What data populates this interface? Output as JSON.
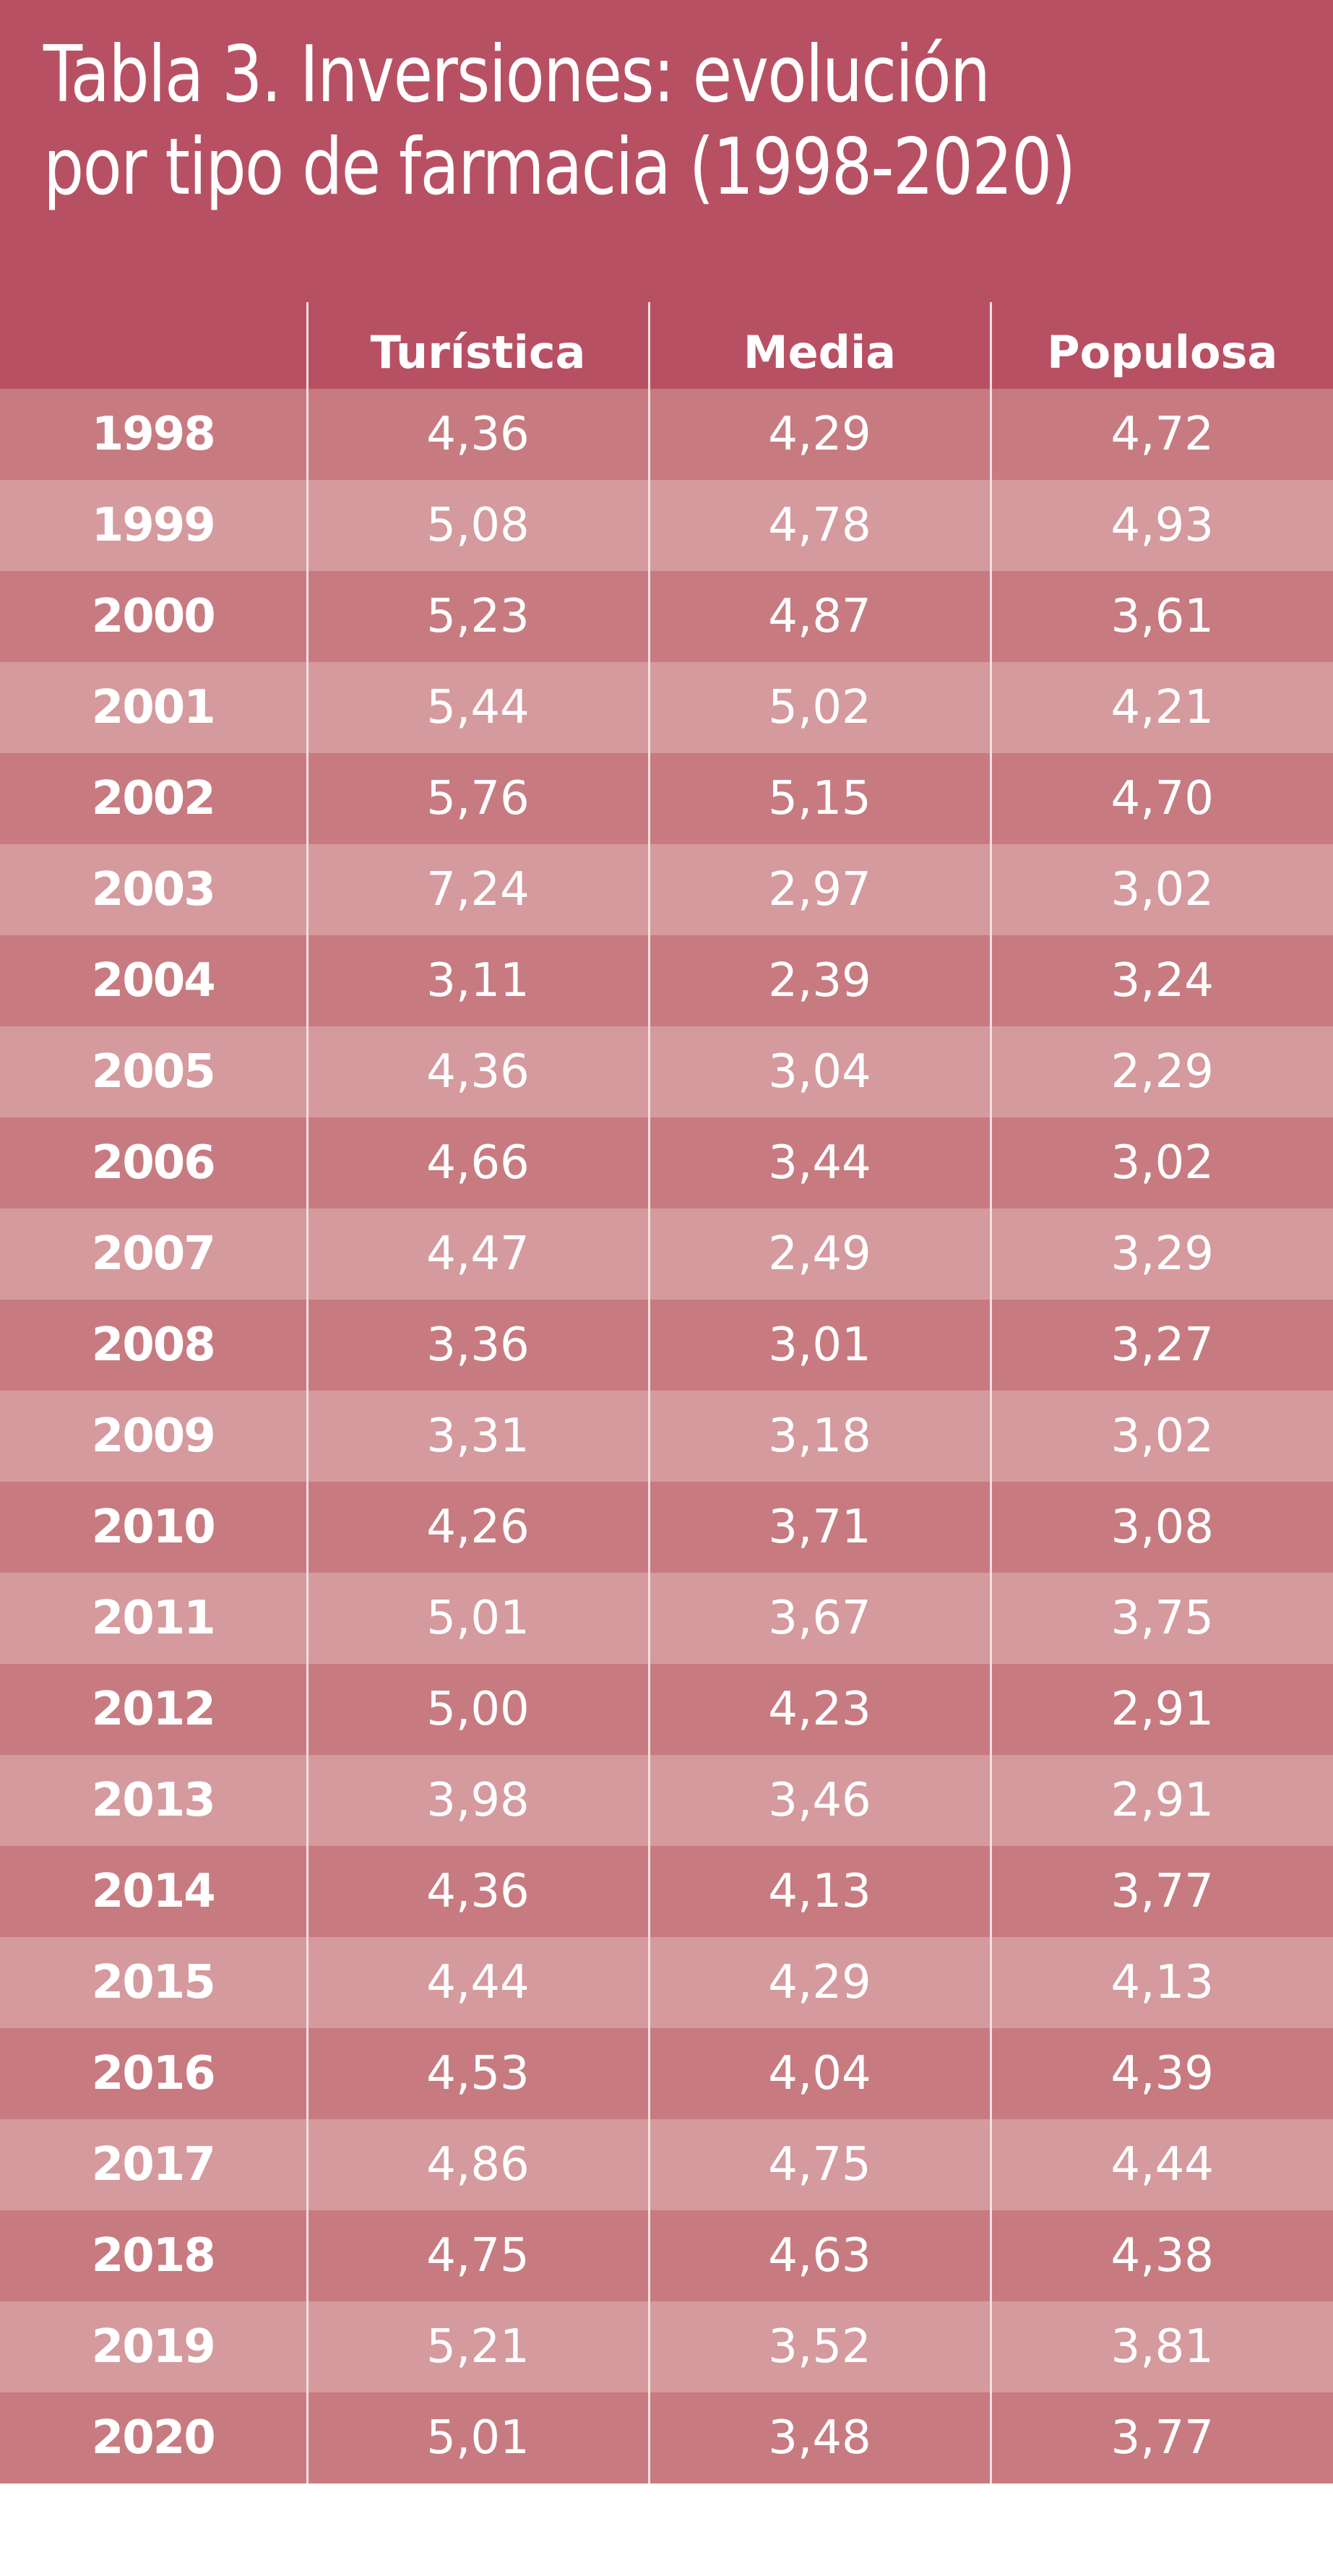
{
  "title": "Tabla 3. Inversiones: evolución por tipo de farmacia (1998-2020)",
  "table": {
    "headers": [
      "",
      "Turística",
      "Media",
      "Populosa"
    ],
    "rows": [
      [
        "1998",
        "4,36",
        "4,29",
        "4,72"
      ],
      [
        "1999",
        "5,08",
        "4,78",
        "4,93"
      ],
      [
        "2000",
        "5,23",
        "4,87",
        "3,61"
      ],
      [
        "2001",
        "5,44",
        "5,02",
        "4,21"
      ],
      [
        "2002",
        "5,76",
        "5,15",
        "4,70"
      ],
      [
        "2003",
        "7,24",
        "2,97",
        "3,02"
      ],
      [
        "2004",
        "3,11",
        "2,39",
        "3,24"
      ],
      [
        "2005",
        "4,36",
        "3,04",
        "2,29"
      ],
      [
        "2006",
        "4,66",
        "3,44",
        "3,02"
      ],
      [
        "2007",
        "4,47",
        "2,49",
        "3,29"
      ],
      [
        "2008",
        "3,36",
        "3,01",
        "3,27"
      ],
      [
        "2009",
        "3,31",
        "3,18",
        "3,02"
      ],
      [
        "2010",
        "4,26",
        "3,71",
        "3,08"
      ],
      [
        "2011",
        "5,01",
        "3,67",
        "3,75"
      ],
      [
        "2012",
        "5,00",
        "4,23",
        "2,91"
      ],
      [
        "2013",
        "3,98",
        "3,46",
        "2,91"
      ],
      [
        "2014",
        "4,36",
        "4,13",
        "3,77"
      ],
      [
        "2015",
        "4,44",
        "4,29",
        "4,13"
      ],
      [
        "2016",
        "4,53",
        "4,04",
        "4,39"
      ],
      [
        "2017",
        "4,86",
        "4,75",
        "4,44"
      ],
      [
        "2018",
        "4,75",
        "4,63",
        "4,38"
      ],
      [
        "2019",
        "5,21",
        "3,52",
        "3,81"
      ],
      [
        "2020",
        "5,01",
        "3,48",
        "3,77"
      ]
    ]
  },
  "colors": {
    "header_background": "#b85063",
    "row_dark": "#c77b80",
    "row_light": "#d59a9e",
    "text": "#ffffff",
    "divider": "#f3dfe1"
  }
}
